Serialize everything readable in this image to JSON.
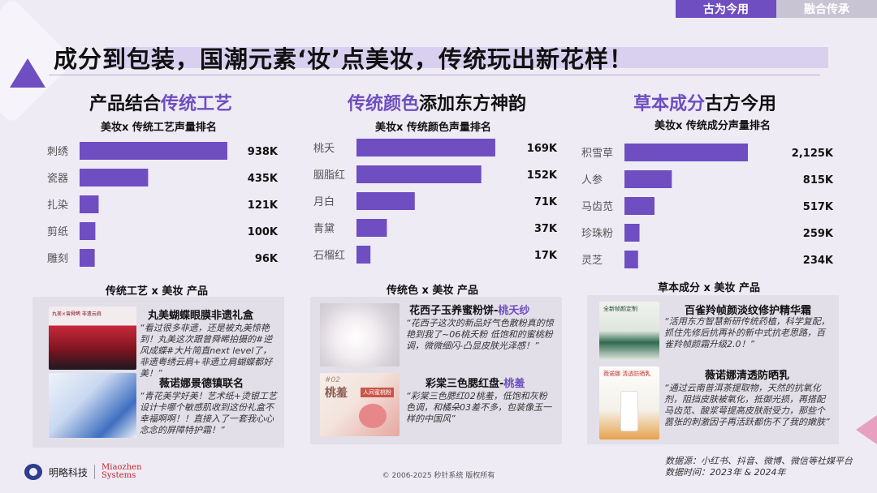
{
  "tabs": [
    {
      "label": "古为今用"
    },
    {
      "label": "融合传承"
    }
  ],
  "title": "成分到包装，国潮元素‘妆’点美妆，传统玩出新花样！",
  "sections": [
    {
      "heading_plain": "产品结合",
      "heading_highlight": "传统工艺",
      "heading_suffix": "",
      "chart_title": "美妆x 传统工艺声量排名",
      "product_title": "传统工艺 x 美妆 产品",
      "products": [
        {
          "name": "丸美蝴蝶眼膜非遗礼盒",
          "name_hl": "",
          "quote": "“看过很多非遗，还是被丸美惊艳到！丸美这次跟曾舜晞拍摄的#逆风成蝶#大片简直next level了，非遗粤绣云肩+非遗立肩蝴蝶都好美！”"
        },
        {
          "name": "薇诺娜景德镇联名",
          "name_hl": "",
          "quote": "“青花美学好美！艺术纸+烫银工艺设计卡哪个敏感肌收到这份礼盒不幸福啊啊！！直接入了一套我心心念念的屏障特护霜！”"
        }
      ]
    },
    {
      "heading_plain": "",
      "heading_highlight": "传统颜色",
      "heading_suffix": "添加东方神韵",
      "chart_title": "美妆x 传统颜色声量排名",
      "product_title": "传统色 x 美妆 产品",
      "products": [
        {
          "name": "花西子玉养蜜粉饼-",
          "name_hl": "桃夭纱",
          "quote": "“花西子这次的新品好气色散粉真的惊艳到我了~06桃夭粉 低饱和的蜜桃粉调，微微细闪-凸显皮肤光泽感！”"
        },
        {
          "name": "彩棠三色腮红盘-",
          "name_hl": "桃羞",
          "quote": "“彩棠三色腮红02桃羞，低饱和灰粉色调，和橘朵03差不多，包装像玉一样的中国风”"
        }
      ]
    },
    {
      "heading_plain": "",
      "heading_highlight": "草本成分",
      "heading_suffix": "古方今用",
      "chart_title": "美妆x 传统成分声量排名",
      "product_title": "草本成分 x 美妆 产品",
      "products": [
        {
          "name": "百雀羚帧颜淡纹修护精华霜",
          "name_hl": "",
          "quote": "“活用东方智慧新研传统药植，科学复配，抓住先修后抗再补的新中式抗老思路，百雀羚帧颜霜升级2.0！”"
        },
        {
          "name": "薇诺娜清透防晒乳",
          "name_hl": "",
          "quote": "“通过云南普洱茶提取物，天然的抗氧化剂，阻挡皮肤被氧化，抵御光损，再搭配马齿苋、酸浆萼提高皮肤耐受力，那些个嚣张的刺激因子再活跃都伤不了我的嫩肤”"
        }
      ]
    }
  ],
  "image_text": {
    "img1": "丸美×曾舜晞  非遗云肩",
    "img4_top": "#02",
    "img4_main": "桃羞",
    "img4_tag": "人间蜜桃粉",
    "img5_top": "全新帧颜定制",
    "img6_top": "薇诺娜 清透防晒乳"
  },
  "footer": {
    "brand1": "明略科技",
    "brand2_line1": "Miaozhen",
    "brand2_line2": "Systems",
    "copyright": "© 2006-2025 秒针系统 版权所有",
    "source_line1": "数据源：小红书、抖音、微博、微信等社媒平台",
    "source_line2": "数据时间：2023年 & 2024年"
  },
  "colors": {
    "accent": "#6e4ec0",
    "bar": "#6e4ec0"
  },
  "chart_data": [
    {
      "type": "bar",
      "title": "美妆x 传统工艺声量排名",
      "orientation": "horizontal",
      "categories": [
        "刺绣",
        "瓷器",
        "扎染",
        "剪纸",
        "雕刻"
      ],
      "values": [
        938,
        435,
        121,
        100,
        96
      ],
      "labels": [
        "938K",
        "435K",
        "121K",
        "100K",
        "96K"
      ],
      "unit": "K",
      "xlim": [
        0,
        1000
      ]
    },
    {
      "type": "bar",
      "title": "美妆x 传统颜色声量排名",
      "orientation": "horizontal",
      "categories": [
        "桃夭",
        "胭脂红",
        "月白",
        "青黛",
        "石榴红"
      ],
      "values": [
        169,
        152,
        71,
        37,
        17
      ],
      "labels": [
        "169K",
        "152K",
        "71K",
        "37K",
        "17K"
      ],
      "unit": "K",
      "xlim": [
        0,
        180
      ]
    },
    {
      "type": "bar",
      "title": "美妆x 传统成分声量排名",
      "orientation": "horizontal",
      "categories": [
        "积雪草",
        "人参",
        "马齿苋",
        "珍珠粉",
        "灵芝"
      ],
      "values": [
        2125,
        815,
        517,
        259,
        234
      ],
      "labels": [
        "2,125K",
        "815K",
        "517K",
        "259K",
        "234K"
      ],
      "unit": "K",
      "xlim": [
        0,
        2600
      ]
    }
  ]
}
